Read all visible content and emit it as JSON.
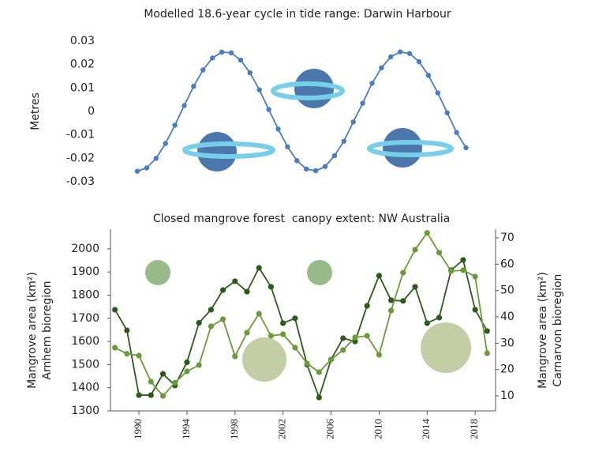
{
  "chart_data": [
    {
      "type": "line",
      "title": "Modelled 18.6-year cycle in tide range: Darwin Harbour",
      "ylabel": "Metres",
      "ylim": [
        -0.03,
        0.03
      ],
      "yticks": [
        0.03,
        0.02,
        0.01,
        0,
        -0.01,
        -0.02,
        -0.03
      ],
      "series": [
        {
          "color": "#4a7cc4",
          "values": [
            -0.0255,
            -0.0241,
            -0.02,
            -0.0137,
            -0.0059,
            0.0025,
            0.0107,
            0.0177,
            0.0228,
            0.0253,
            0.025,
            0.0219,
            0.0165,
            0.0092,
            0.0008,
            -0.0075,
            -0.0151,
            -0.021,
            -0.0246,
            -0.0253,
            -0.0235,
            -0.0189,
            -0.0127,
            -0.0045,
            0.0035,
            0.012,
            0.0186,
            0.0233,
            0.0254,
            0.0247,
            0.0212,
            0.0154,
            0.0079,
            -0.0006,
            -0.009,
            -0.0155
          ]
        }
      ]
    },
    {
      "type": "line",
      "title": "Closed mangrove forest  canopy extent: NW Australia",
      "ylabel": [
        "Mangrove area (km²)",
        "Arnhem bioregion"
      ],
      "y2label": [
        "Mangrove area (km²)",
        "Carnarvon bioregion"
      ],
      "x": [
        1988,
        1989,
        1990,
        1991,
        1992,
        1993,
        1994,
        1995,
        1996,
        1997,
        1998,
        1999,
        2000,
        2001,
        2002,
        2003,
        2004,
        2005,
        2006,
        2007,
        2008,
        2009,
        2010,
        2011,
        2012,
        2013,
        2014,
        2015,
        2016,
        2017,
        2018,
        2019
      ],
      "xlim": [
        1987.63,
        2019.7
      ],
      "xticks": [
        1990,
        1994,
        1998,
        2002,
        2006,
        2010,
        2014,
        2018
      ],
      "ylim": [
        1300,
        2085
      ],
      "yticks": [
        1300,
        1400,
        1500,
        1600,
        1700,
        1800,
        1900,
        2000
      ],
      "y2lim": [
        4.3,
        73.3
      ],
      "y2ticks": [
        10,
        20,
        30,
        40,
        50,
        60,
        70
      ],
      "series": [
        {
          "color": "#2d5a1b",
          "values": [
            1737,
            1648,
            1368,
            1368,
            1460,
            1410,
            1510,
            1680,
            1737,
            1822,
            1860,
            1815,
            1918,
            1836,
            1679,
            1700,
            1500,
            1358,
            1522,
            1614,
            1600,
            1754,
            1884,
            1778,
            1775,
            1836,
            1679,
            1703,
            1908,
            1952,
            1737,
            1645
          ]
        },
        {
          "color": "#6a9a3a",
          "axis": "y2",
          "values": [
            28.3,
            26,
            25.3,
            15.4,
            10,
            15,
            19.3,
            21.7,
            36.4,
            39.1,
            25,
            34,
            41.2,
            32.8,
            33.4,
            28.3,
            22.3,
            19,
            23.8,
            27.4,
            32.2,
            32.8,
            25.6,
            42.4,
            56.8,
            65.5,
            71.9,
            64.4,
            57.4,
            57.7,
            55.3,
            26.2
          ]
        }
      ]
    }
  ]
}
